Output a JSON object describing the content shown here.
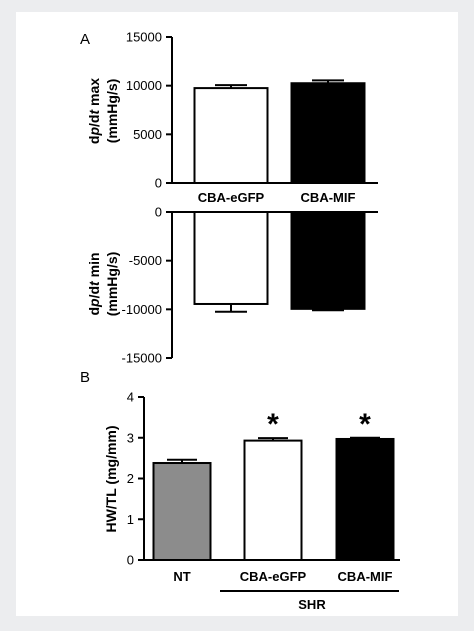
{
  "figure": {
    "panel_a_letter": "A",
    "panel_b_letter": "B"
  },
  "chart_data": [
    {
      "panel": "A",
      "type": "bar",
      "categories": [
        "CBA-eGFP",
        "CBA-MIF"
      ],
      "series": [
        {
          "values": [
            9750,
            10250
          ],
          "errors": [
            300,
            300
          ],
          "colors": [
            "#ffffff",
            "#000000"
          ]
        }
      ],
      "ylabel_lines": [
        "dp/dt max",
        "(mmHg/s)"
      ],
      "ylim": [
        0,
        15000
      ],
      "yticks": [
        0,
        5000,
        10000,
        15000
      ],
      "ytick_labels": [
        "0",
        "5000",
        "10000",
        "15000"
      ]
    },
    {
      "panel": "A",
      "type": "bar",
      "categories": [
        "CBA-eGFP",
        "CBA-MIF"
      ],
      "series": [
        {
          "values": [
            -9450,
            -9950
          ],
          "errors": [
            800,
            150
          ],
          "colors": [
            "#ffffff",
            "#000000"
          ]
        }
      ],
      "ylabel_lines": [
        "dp/dt min",
        "(mmHg/s)"
      ],
      "ylim": [
        -15000,
        0
      ],
      "yticks": [
        0,
        -5000,
        -10000,
        -15000
      ],
      "ytick_labels": [
        "0",
        "-5000",
        "-10000",
        "-15000"
      ]
    },
    {
      "panel": "B",
      "type": "bar",
      "categories": [
        "NT",
        "CBA-eGFP",
        "CBA-MIF"
      ],
      "series": [
        {
          "values": [
            2.38,
            2.93,
            2.97
          ],
          "errors": [
            0.08,
            0.06,
            0.03
          ],
          "colors": [
            "#8c8c8c",
            "#ffffff",
            "#000000"
          ]
        }
      ],
      "significance": [
        "",
        "*",
        "*"
      ],
      "group_label": "SHR",
      "ylabel": "HW/TL (mg/mm)",
      "ylim": [
        0,
        4
      ],
      "yticks": [
        0,
        1,
        2,
        3,
        4
      ],
      "ytick_labels": [
        "0",
        "1",
        "2",
        "3",
        "4"
      ]
    }
  ]
}
